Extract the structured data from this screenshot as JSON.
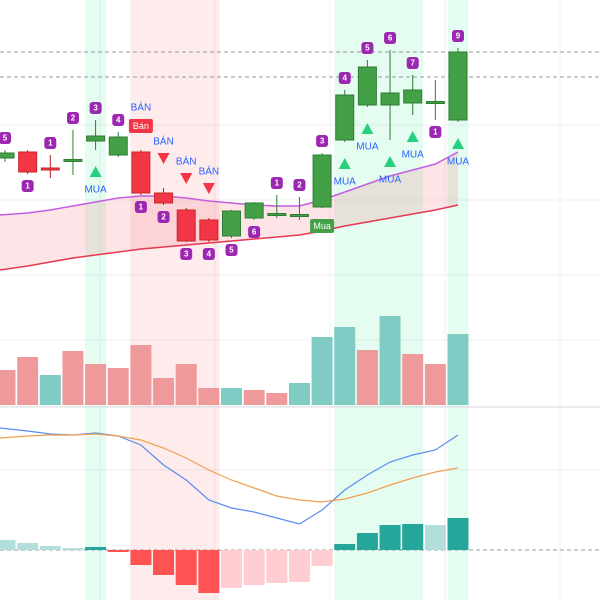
{
  "chart_data": {
    "type": "candlestick",
    "ylim": [
      0,
      300
    ],
    "candles": [
      {
        "open": 142,
        "high": 150,
        "low": 138,
        "close": 147
      },
      {
        "open": 148,
        "high": 150,
        "low": 126,
        "close": 128
      },
      {
        "open": 132,
        "high": 145,
        "low": 122,
        "close": 131.5
      },
      {
        "open": 140,
        "high": 170,
        "low": 125,
        "close": 140.5
      },
      {
        "open": 159,
        "high": 180,
        "low": 150,
        "close": 164
      },
      {
        "open": 145,
        "high": 168,
        "low": 143,
        "close": 163
      },
      {
        "open": 148,
        "high": 150,
        "low": 105,
        "close": 107
      },
      {
        "open": 107,
        "high": 112,
        "low": 95,
        "close": 97
      },
      {
        "open": 90,
        "high": 92,
        "low": 58,
        "close": 59
      },
      {
        "open": 80,
        "high": 82,
        "low": 58,
        "close": 60
      },
      {
        "open": 64,
        "high": 90,
        "low": 62,
        "close": 89
      },
      {
        "open": 82,
        "high": 98,
        "low": 80,
        "close": 97
      },
      {
        "open": 86,
        "high": 105,
        "low": 82,
        "close": 86.5
      },
      {
        "open": 85,
        "high": 103,
        "low": 80,
        "close": 85.5
      },
      {
        "open": 93,
        "high": 147,
        "low": 92,
        "close": 145
      },
      {
        "open": 160,
        "high": 210,
        "low": 158,
        "close": 205
      },
      {
        "open": 195,
        "high": 240,
        "low": 193,
        "close": 233
      },
      {
        "open": 195,
        "high": 250,
        "low": 160,
        "close": 207
      },
      {
        "open": 197,
        "high": 225,
        "low": 185,
        "close": 210
      },
      {
        "open": 198,
        "high": 220,
        "low": 180,
        "close": 198.5
      },
      {
        "open": 180,
        "high": 252,
        "low": 178,
        "close": 248
      }
    ],
    "up_color": "#43a047",
    "down_color": "#f23645",
    "ma_fast": [
      85,
      87,
      90,
      94,
      98,
      102,
      104,
      104,
      102,
      99,
      97,
      95,
      94,
      94,
      100,
      108,
      116,
      124,
      130,
      136,
      148
    ],
    "ma_fast_color": "#c35ee0",
    "ma_slow": [
      30,
      34,
      38,
      42,
      45,
      48,
      51,
      53,
      55,
      57,
      59,
      61,
      63,
      65,
      69,
      74,
      78,
      82,
      86,
      90,
      95
    ],
    "ma_slow_color": "#e53950",
    "price_lines": [
      248,
      223
    ],
    "buy_zones": [
      [
        4,
        4
      ],
      [
        15,
        18
      ],
      [
        20,
        20
      ]
    ],
    "sell_zones": [
      [
        6,
        9
      ]
    ],
    "counts": [
      "5",
      "1",
      "1",
      "2",
      "3",
      "4",
      "1",
      "2",
      "3",
      "4",
      "5",
      "6",
      "1",
      "2",
      "3",
      "4",
      "5",
      "6",
      "7",
      "1",
      "9"
    ],
    "count_pos": [
      "above",
      "below",
      "above",
      "above",
      "above",
      "above",
      "below",
      "below",
      "below",
      "below",
      "below",
      "below",
      "above",
      "above",
      "above",
      "above",
      "above",
      "above",
      "above",
      "below",
      "above"
    ],
    "signals": [
      null,
      null,
      null,
      null,
      "MUA",
      null,
      "BÁN",
      "BÁN",
      "BÁN",
      "BÁN",
      null,
      null,
      null,
      null,
      null,
      "MUA",
      "MUA",
      "MUA",
      "MUA",
      null,
      "MUA"
    ],
    "boxes": [
      null,
      null,
      null,
      null,
      null,
      null,
      "Bán",
      null,
      null,
      null,
      null,
      null,
      null,
      null,
      "Mua",
      null,
      null,
      null,
      null,
      null,
      null
    ],
    "volume_ylim": [
      0,
      100
    ],
    "volume": [
      35,
      48,
      30,
      54,
      41,
      37,
      60,
      27,
      41,
      17,
      17,
      15,
      12,
      22,
      68,
      78,
      55,
      89,
      51,
      41,
      71
    ],
    "volume_colors": [
      "#ef9a9a",
      "#ef9a9a",
      "#80cbc4",
      "#ef9a9a",
      "#ef9a9a",
      "#ef9a9a",
      "#ef9a9a",
      "#ef9a9a",
      "#ef9a9a",
      "#ef9a9a",
      "#80cbc4",
      "#ef9a9a",
      "#ef9a9a",
      "#80cbc4",
      "#80cbc4",
      "#80cbc4",
      "#ef9a9a",
      "#80cbc4",
      "#ef9a9a",
      "#ef9a9a",
      "#80cbc4"
    ],
    "macd_ylim": [
      -50,
      135
    ],
    "macd": [
      122,
      119,
      116,
      115,
      117,
      114,
      105,
      85,
      70,
      50,
      42,
      38,
      32,
      26,
      40,
      60,
      75,
      88,
      95,
      100,
      115
    ],
    "macd_color": "#5b8def",
    "signal_line": [
      112,
      114,
      115,
      115,
      116,
      114,
      110,
      102,
      92,
      80,
      70,
      62,
      54,
      50,
      48,
      51,
      57,
      65,
      72,
      78,
      82
    ],
    "signal_color": "#f0a050",
    "histogram": [
      10,
      7,
      4,
      2,
      3,
      -2,
      -15,
      -25,
      -35,
      -43,
      -38,
      -35,
      -33,
      -32,
      -16,
      6,
      17,
      25,
      26,
      25,
      32
    ],
    "histogram_colors": [
      "#b2dfdb",
      "#b2dfdb",
      "#b2dfdb",
      "#b2dfdb",
      "#26a69a",
      "#ff5252",
      "#ff5252",
      "#ff5252",
      "#ff5252",
      "#ff5252",
      "#ffcdd2",
      "#ffcdd2",
      "#ffcdd2",
      "#ffcdd2",
      "#ffcdd2",
      "#26a69a",
      "#26a69a",
      "#26a69a",
      "#26a69a",
      "#b2dfdb",
      "#26a69a"
    ]
  }
}
